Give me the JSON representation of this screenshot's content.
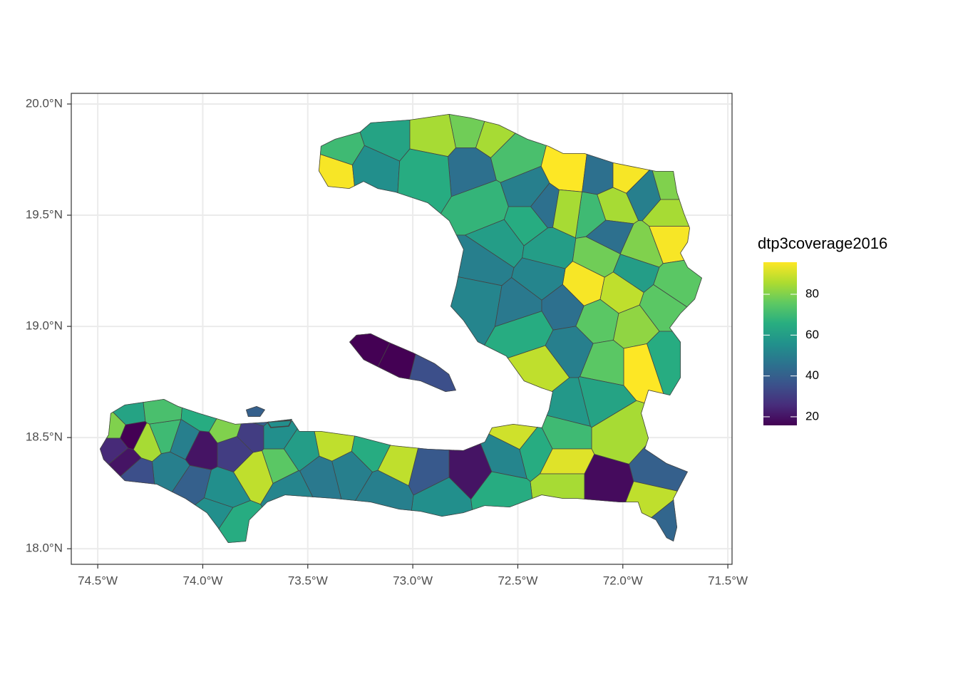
{
  "chart_data": {
    "type": "map",
    "xlim": [
      -74.626,
      -71.48
    ],
    "ylim": [
      17.93,
      20.048
    ],
    "xticks": [
      {
        "value": -74.5,
        "label": "74.5°W"
      },
      {
        "value": -74.0,
        "label": "74.0°W"
      },
      {
        "value": -73.5,
        "label": "73.5°W"
      },
      {
        "value": -73.0,
        "label": "73.0°W"
      },
      {
        "value": -72.5,
        "label": "72.5°W"
      },
      {
        "value": -72.0,
        "label": "72.0°W"
      },
      {
        "value": -71.5,
        "label": "71.5°W"
      }
    ],
    "yticks": [
      {
        "value": 18.0,
        "label": "18.0°N"
      },
      {
        "value": 18.5,
        "label": "18.5°N"
      },
      {
        "value": 19.0,
        "label": "19.0°N"
      },
      {
        "value": 19.5,
        "label": "19.5°N"
      },
      {
        "value": 20.0,
        "label": "20.0°N"
      }
    ],
    "grid": true,
    "legend": {
      "title": "dtp3coverage2016",
      "clim": [
        15.8,
        95.7
      ],
      "ticks": [
        20,
        40,
        60,
        80
      ],
      "colors": [
        "#440154",
        "#472d7b",
        "#3b528b",
        "#2c728e",
        "#21918c",
        "#28ae80",
        "#5ec962",
        "#addc30",
        "#fde725"
      ]
    },
    "values": [
      95,
      70,
      62,
      55,
      85,
      78,
      85,
      45,
      72,
      50,
      45,
      96,
      45,
      95,
      50,
      80,
      85,
      95,
      85,
      45,
      80,
      70,
      85,
      65,
      68,
      65,
      60,
      60,
      78,
      60,
      75,
      95,
      88,
      75,
      50,
      52,
      52,
      48,
      45,
      65,
      75,
      82,
      65,
      96,
      75,
      50,
      88,
      62,
      58,
      85,
      70,
      92,
      85,
      18,
      40,
      88,
      42,
      65,
      90,
      52,
      20,
      38,
      55,
      65,
      88,
      50,
      50,
      88,
      65,
      60,
      48,
      75,
      52,
      88,
      30,
      55,
      20,
      80,
      30,
      55,
      50,
      40,
      65,
      55,
      70,
      50,
      85,
      62,
      15,
      80,
      25,
      20,
      35,
      72,
      65,
      15,
      15,
      35,
      40
    ]
  }
}
